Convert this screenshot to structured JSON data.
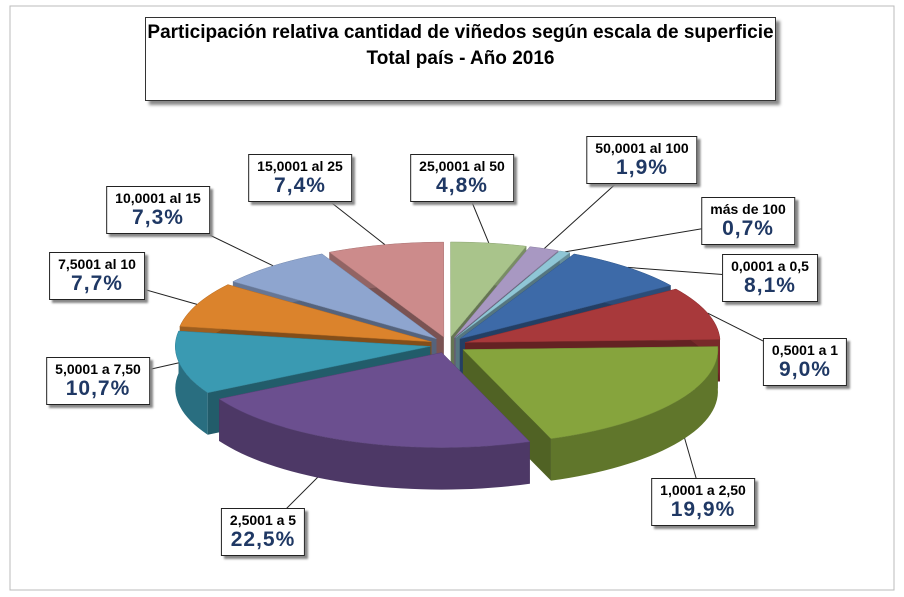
{
  "chart_data": {
    "type": "pie",
    "title": "Participación relativa cantidad de viñedos según escala de superficie",
    "subtitle": "Total país  - Año 2016",
    "categories": [
      "0,0001 a 0,5",
      "0,5001 a 1",
      "1,0001 a 2,50",
      "2,5001 a 5",
      "5,0001 a 7,50",
      "7,5001 al 10",
      "10,0001 al 15",
      "15,0001 al 25",
      "25,0001 al 50",
      "50,0001 al 100",
      "más de 100"
    ],
    "values": [
      8.1,
      9.0,
      19.9,
      22.5,
      10.7,
      7.7,
      7.3,
      7.4,
      4.8,
      1.9,
      0.7
    ],
    "value_labels": [
      "8,1%",
      "9,0%",
      "19,9%",
      "22,5%",
      "10,7%",
      "7,7%",
      "7,3%",
      "7,4%",
      "4,8%",
      "1,9%",
      "0,7%"
    ],
    "colors": [
      "#3d6aa8",
      "#a8393b",
      "#86a43d",
      "#6b4f8f",
      "#3a9ab2",
      "#db832c",
      "#8ea5cf",
      "#cc8b8b",
      "#a9c48b",
      "#a898c2",
      "#8fc6d6"
    ]
  }
}
